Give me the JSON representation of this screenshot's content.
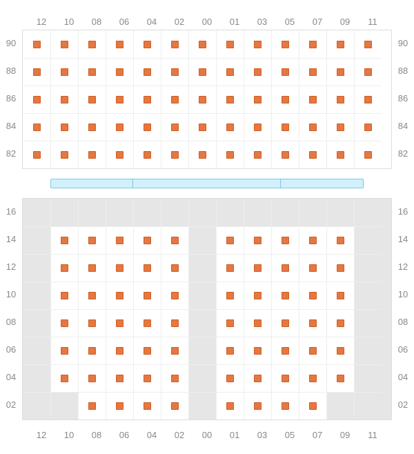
{
  "layout": {
    "cell_size": 40,
    "seat_size": 11,
    "columns": 13
  },
  "colors": {
    "seat_fill": "#e47742",
    "seat_border": "#d05e21",
    "grid_border": "#dddddd",
    "cell_border": "#eeeeee",
    "empty_bg": "#e6e6e6",
    "filled_bg": "#ffffff",
    "label": "#888888",
    "stage_fill": "#d2f0fb",
    "stage_border": "#7fc6e6",
    "page_bg": "#ffffff"
  },
  "column_labels_top": [
    "12",
    "10",
    "08",
    "06",
    "04",
    "02",
    "00",
    "01",
    "03",
    "05",
    "07",
    "09",
    "11"
  ],
  "column_labels_bottom": [
    "12",
    "10",
    "08",
    "06",
    "04",
    "02",
    "00",
    "01",
    "03",
    "05",
    "07",
    "09",
    "11"
  ],
  "top_section": {
    "row_labels": [
      "90",
      "88",
      "86",
      "84",
      "82"
    ],
    "rows": [
      [
        1,
        1,
        1,
        1,
        1,
        1,
        1,
        1,
        1,
        1,
        1,
        1,
        1
      ],
      [
        1,
        1,
        1,
        1,
        1,
        1,
        1,
        1,
        1,
        1,
        1,
        1,
        1
      ],
      [
        1,
        1,
        1,
        1,
        1,
        1,
        1,
        1,
        1,
        1,
        1,
        1,
        1
      ],
      [
        1,
        1,
        1,
        1,
        1,
        1,
        1,
        1,
        1,
        1,
        1,
        1,
        1
      ],
      [
        1,
        1,
        1,
        1,
        1,
        1,
        1,
        1,
        1,
        1,
        1,
        1,
        1
      ]
    ]
  },
  "stage": {
    "segments": [
      120,
      214,
      120
    ]
  },
  "bottom_section": {
    "row_labels": [
      "16",
      "14",
      "12",
      "10",
      "08",
      "06",
      "04",
      "02"
    ],
    "rows": [
      [
        0,
        0,
        0,
        0,
        0,
        0,
        0,
        0,
        0,
        0,
        0,
        0,
        0
      ],
      [
        0,
        1,
        1,
        1,
        1,
        1,
        0,
        1,
        1,
        1,
        1,
        1,
        0
      ],
      [
        0,
        1,
        1,
        1,
        1,
        1,
        0,
        1,
        1,
        1,
        1,
        1,
        0
      ],
      [
        0,
        1,
        1,
        1,
        1,
        1,
        0,
        1,
        1,
        1,
        1,
        1,
        0
      ],
      [
        0,
        1,
        1,
        1,
        1,
        1,
        0,
        1,
        1,
        1,
        1,
        1,
        0
      ],
      [
        0,
        1,
        1,
        1,
        1,
        1,
        0,
        1,
        1,
        1,
        1,
        1,
        0
      ],
      [
        0,
        1,
        1,
        1,
        1,
        1,
        0,
        1,
        1,
        1,
        1,
        1,
        0
      ],
      [
        0,
        0,
        1,
        1,
        1,
        1,
        0,
        1,
        1,
        1,
        1,
        0,
        0
      ]
    ]
  }
}
